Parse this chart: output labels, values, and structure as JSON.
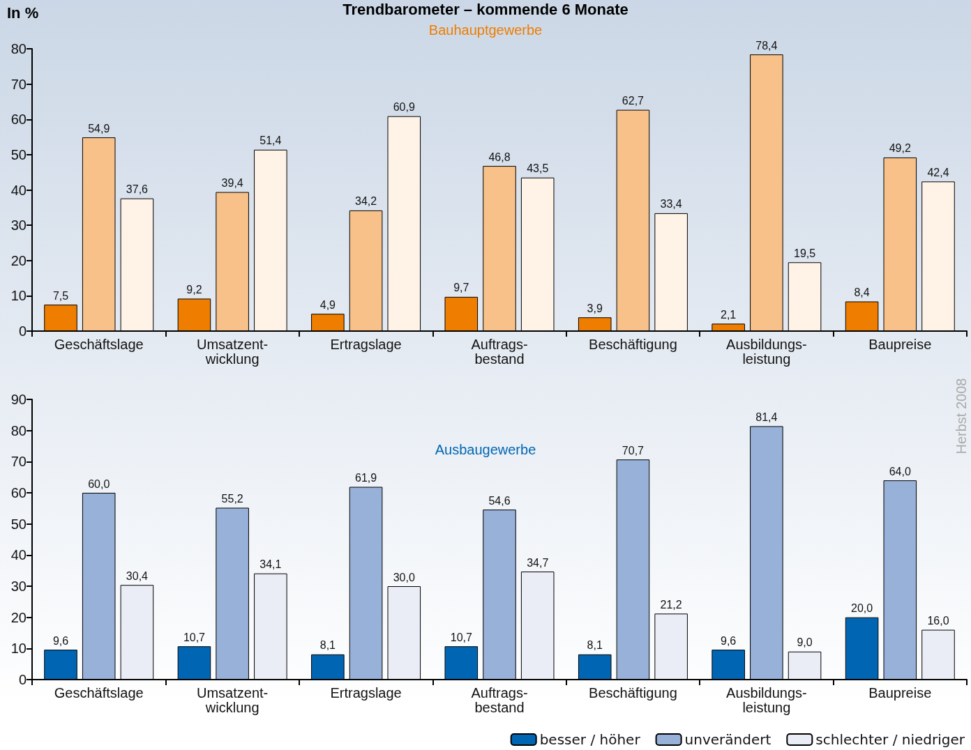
{
  "chart_data": [
    {
      "type": "bar",
      "title": "Trendbarometer – kommende 6 Monate",
      "subtitle": "Bauhauptgewerbe",
      "ylabel": "In %",
      "categories": [
        "Geschäftslage",
        "Umsatzent-\nwicklung",
        "Ertragslage",
        "Auftrags-\nbestand",
        "Beschäftigung",
        "Ausbildungs-\nleistung",
        "Baupreise"
      ],
      "series": [
        {
          "color": "#ee7d00",
          "values": [
            7.5,
            9.2,
            4.9,
            9.7,
            3.9,
            2.1,
            8.4
          ],
          "value_labels": [
            "7,5",
            "9,2",
            "4,9",
            "9,7",
            "3,9",
            "2,1",
            "8,4"
          ]
        },
        {
          "color": "#f8c189",
          "values": [
            54.9,
            39.4,
            34.2,
            46.8,
            62.7,
            78.4,
            49.2
          ],
          "value_labels": [
            "54,9",
            "39,4",
            "34,2",
            "46,8",
            "62,7",
            "78,4",
            "49,2"
          ]
        },
        {
          "color": "#fff2e6",
          "values": [
            37.6,
            51.4,
            60.9,
            43.5,
            33.4,
            19.5,
            42.4
          ],
          "value_labels": [
            "37,6",
            "51,4",
            "60,9",
            "43,5",
            "33,4",
            "19,5",
            "42,4"
          ]
        }
      ],
      "ylim": [
        0,
        80
      ],
      "yticks": [
        0,
        10,
        20,
        30,
        40,
        50,
        60,
        70,
        80
      ],
      "grid": false,
      "legend": false
    },
    {
      "type": "bar",
      "subtitle": "Ausbaugewerbe",
      "categories": [
        "Geschäftslage",
        "Umsatzent-\nwicklung",
        "Ertragslage",
        "Auftrags-\nbestand",
        "Beschäftigung",
        "Ausbildungs-\nleistung",
        "Baupreise"
      ],
      "series": [
        {
          "name": "besser / höher",
          "color": "#0066b3",
          "values": [
            9.6,
            10.7,
            8.1,
            10.7,
            8.1,
            9.6,
            20.0
          ],
          "value_labels": [
            "9,6",
            "10,7",
            "8,1",
            "10,7",
            "8,1",
            "9,6",
            "20,0"
          ]
        },
        {
          "name": "unverändert",
          "color": "#98b1d8",
          "values": [
            60.0,
            55.2,
            61.9,
            54.6,
            70.7,
            81.4,
            64.0
          ],
          "value_labels": [
            "60,0",
            "55,2",
            "61,9",
            "54,6",
            "70,7",
            "81,4",
            "64,0"
          ]
        },
        {
          "name": "schlechter / niedriger",
          "color": "#eaedf6",
          "values": [
            30.4,
            34.1,
            30.0,
            34.7,
            21.2,
            9.0,
            16.0
          ],
          "value_labels": [
            "30,4",
            "34,1",
            "30,0",
            "34,7",
            "21,2",
            "9,0",
            "16,0"
          ]
        }
      ],
      "ylim": [
        0,
        90
      ],
      "yticks": [
        0,
        10,
        20,
        30,
        40,
        50,
        60,
        70,
        80,
        90
      ],
      "grid": false,
      "legend": "bottom right",
      "annotations": [
        "Herbst 2008"
      ]
    }
  ]
}
